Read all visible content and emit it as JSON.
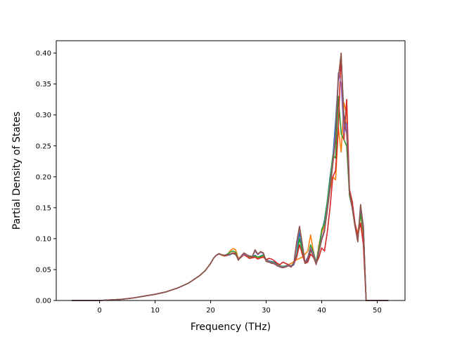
{
  "chart_data": {
    "type": "line",
    "title": "",
    "xlabel": "Frequency (THz)",
    "ylabel": "Partial Density of States",
    "xlim": [
      -7.8,
      55
    ],
    "ylim": [
      0,
      0.42
    ],
    "xticks": [
      0,
      10,
      20,
      30,
      40,
      50
    ],
    "yticks": [
      0.0,
      0.05,
      0.1,
      0.15,
      0.2,
      0.25,
      0.3,
      0.35,
      0.4
    ],
    "ytick_labels": [
      "0.00",
      "0.05",
      "0.10",
      "0.15",
      "0.20",
      "0.25",
      "0.30",
      "0.35",
      "0.40"
    ],
    "grid": false,
    "legend": "none",
    "x": [
      -5,
      0,
      2,
      4,
      6,
      8,
      10,
      12,
      14,
      16,
      18,
      19,
      19.5,
      20,
      20.5,
      21,
      21.5,
      22,
      22.5,
      23,
      23.5,
      24,
      24.5,
      25,
      25.5,
      26,
      26.5,
      27,
      27.5,
      28,
      28.5,
      29,
      29.5,
      30,
      30.5,
      31,
      31.5,
      32,
      32.5,
      33,
      33.5,
      34,
      34.5,
      35,
      35.5,
      36,
      36.5,
      37,
      37.5,
      38,
      38.5,
      39,
      39.5,
      40,
      40.5,
      41,
      41.5,
      42,
      42.5,
      43,
      43.5,
      44,
      44.5,
      45,
      45.5,
      46,
      46.5,
      47,
      47.5,
      48,
      52
    ],
    "series": [
      {
        "color": "#1f77b4",
        "values": [
          0,
          0,
          0.001,
          0.002,
          0.004,
          0.007,
          0.01,
          0.014,
          0.02,
          0.028,
          0.04,
          0.048,
          0.054,
          0.06,
          0.068,
          0.073,
          0.075,
          0.074,
          0.072,
          0.073,
          0.074,
          0.076,
          0.074,
          0.068,
          0.071,
          0.074,
          0.072,
          0.07,
          0.071,
          0.073,
          0.07,
          0.072,
          0.074,
          0.066,
          0.064,
          0.063,
          0.062,
          0.058,
          0.056,
          0.055,
          0.056,
          0.058,
          0.055,
          0.058,
          0.075,
          0.11,
          0.085,
          0.06,
          0.065,
          0.08,
          0.075,
          0.06,
          0.08,
          0.11,
          0.13,
          0.16,
          0.2,
          0.23,
          0.29,
          0.36,
          0.395,
          0.3,
          0.28,
          0.17,
          0.15,
          0.12,
          0.1,
          0.15,
          0.12,
          0,
          0
        ]
      },
      {
        "color": "#ff7f0e",
        "values": [
          0,
          0,
          0.001,
          0.002,
          0.004,
          0.007,
          0.01,
          0.014,
          0.02,
          0.028,
          0.04,
          0.048,
          0.054,
          0.06,
          0.068,
          0.073,
          0.075,
          0.073,
          0.072,
          0.074,
          0.08,
          0.084,
          0.082,
          0.068,
          0.07,
          0.075,
          0.072,
          0.07,
          0.069,
          0.07,
          0.068,
          0.07,
          0.072,
          0.065,
          0.063,
          0.062,
          0.06,
          0.057,
          0.055,
          0.054,
          0.056,
          0.058,
          0.06,
          0.063,
          0.066,
          0.068,
          0.07,
          0.075,
          0.08,
          0.106,
          0.08,
          0.06,
          0.09,
          0.11,
          0.12,
          0.15,
          0.18,
          0.2,
          0.195,
          0.28,
          0.24,
          0.32,
          0.3,
          0.17,
          0.15,
          0.12,
          0.11,
          0.14,
          0.1,
          0,
          0
        ]
      },
      {
        "color": "#2ca02c",
        "values": [
          0,
          0,
          0.001,
          0.002,
          0.004,
          0.007,
          0.01,
          0.014,
          0.02,
          0.028,
          0.04,
          0.048,
          0.054,
          0.06,
          0.068,
          0.073,
          0.075,
          0.074,
          0.073,
          0.075,
          0.078,
          0.08,
          0.078,
          0.066,
          0.07,
          0.074,
          0.073,
          0.071,
          0.07,
          0.072,
          0.07,
          0.071,
          0.073,
          0.064,
          0.063,
          0.062,
          0.061,
          0.058,
          0.056,
          0.055,
          0.056,
          0.058,
          0.056,
          0.06,
          0.072,
          0.1,
          0.08,
          0.062,
          0.068,
          0.09,
          0.078,
          0.062,
          0.085,
          0.115,
          0.125,
          0.16,
          0.195,
          0.235,
          0.23,
          0.33,
          0.27,
          0.26,
          0.25,
          0.17,
          0.15,
          0.12,
          0.1,
          0.14,
          0.11,
          0,
          0
        ]
      },
      {
        "color": "#d62728",
        "values": [
          0,
          0,
          0.001,
          0.002,
          0.004,
          0.007,
          0.01,
          0.014,
          0.02,
          0.028,
          0.04,
          0.048,
          0.054,
          0.06,
          0.068,
          0.073,
          0.075,
          0.074,
          0.072,
          0.073,
          0.075,
          0.077,
          0.076,
          0.066,
          0.07,
          0.074,
          0.071,
          0.068,
          0.069,
          0.07,
          0.067,
          0.069,
          0.07,
          0.066,
          0.068,
          0.067,
          0.064,
          0.06,
          0.058,
          0.062,
          0.06,
          0.058,
          0.055,
          0.06,
          0.07,
          0.09,
          0.075,
          0.06,
          0.062,
          0.075,
          0.07,
          0.06,
          0.07,
          0.085,
          0.08,
          0.11,
          0.15,
          0.2,
          0.21,
          0.28,
          0.4,
          0.26,
          0.325,
          0.18,
          0.16,
          0.125,
          0.105,
          0.125,
          0.09,
          0,
          0
        ]
      },
      {
        "color": "#9467bd",
        "values": [
          0,
          0,
          0.001,
          0.002,
          0.004,
          0.007,
          0.01,
          0.014,
          0.02,
          0.028,
          0.04,
          0.048,
          0.054,
          0.06,
          0.068,
          0.073,
          0.075,
          0.074,
          0.073,
          0.074,
          0.075,
          0.076,
          0.075,
          0.066,
          0.071,
          0.075,
          0.073,
          0.072,
          0.071,
          0.08,
          0.074,
          0.078,
          0.076,
          0.064,
          0.063,
          0.061,
          0.06,
          0.057,
          0.055,
          0.054,
          0.055,
          0.057,
          0.055,
          0.06,
          0.09,
          0.118,
          0.09,
          0.062,
          0.07,
          0.085,
          0.075,
          0.06,
          0.08,
          0.1,
          0.115,
          0.15,
          0.185,
          0.225,
          0.27,
          0.368,
          0.35,
          0.27,
          0.285,
          0.175,
          0.15,
          0.12,
          0.095,
          0.155,
          0.115,
          0,
          0
        ]
      },
      {
        "color": "#8c564b",
        "values": [
          0,
          0,
          0.001,
          0.002,
          0.004,
          0.007,
          0.01,
          0.014,
          0.02,
          0.028,
          0.04,
          0.048,
          0.054,
          0.06,
          0.068,
          0.073,
          0.076,
          0.074,
          0.073,
          0.074,
          0.075,
          0.076,
          0.075,
          0.065,
          0.072,
          0.077,
          0.074,
          0.072,
          0.071,
          0.082,
          0.075,
          0.079,
          0.077,
          0.063,
          0.062,
          0.06,
          0.059,
          0.056,
          0.054,
          0.053,
          0.054,
          0.056,
          0.054,
          0.062,
          0.095,
          0.12,
          0.092,
          0.06,
          0.068,
          0.082,
          0.072,
          0.058,
          0.078,
          0.098,
          0.112,
          0.145,
          0.18,
          0.22,
          0.26,
          0.36,
          0.4,
          0.29,
          0.27,
          0.175,
          0.15,
          0.12,
          0.095,
          0.155,
          0.12,
          0,
          0
        ]
      }
    ]
  }
}
